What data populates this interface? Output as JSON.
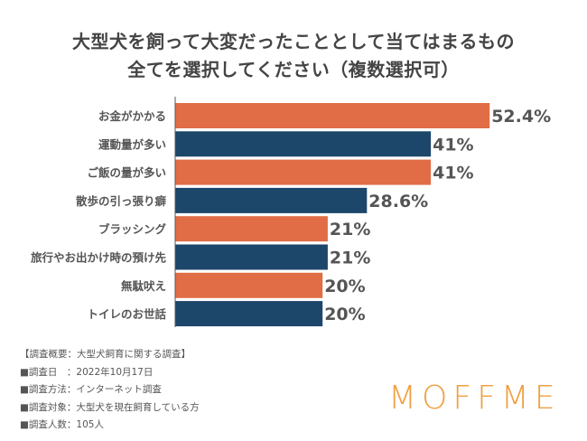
{
  "chart_data": {
    "type": "bar",
    "orientation": "horizontal",
    "title": [
      "大型犬を飼って大変だったこととして当てはまるもの",
      "全てを選択してください（複数選択可）"
    ],
    "categories": [
      "お金がかかる",
      "運動量が多い",
      "ご飯の量が多い",
      "散歩の引っ張り癖",
      "ブラッシング",
      "旅行やお出かけ時の預け先",
      "無駄吠え",
      "トイレのお世話"
    ],
    "values": [
      52.4,
      41,
      41,
      28.6,
      21,
      21,
      20,
      20
    ],
    "data_labels": [
      "52.4%",
      "41%",
      "41%",
      "28.6%",
      "21%",
      "21%",
      "20%",
      "20%"
    ],
    "bar_colors": [
      "#e06d45",
      "#1d466b",
      "#e06d45",
      "#1d466b",
      "#e06d45",
      "#1d466b",
      "#e06d45",
      "#1d466b"
    ],
    "unit": "%",
    "grid": false,
    "legend": "none"
  },
  "notes": [
    "【調査概要：大型犬飼育に関する調査】",
    "■調査日　：2022年10月17日",
    "■調査方法：インターネット調査",
    "■調査対象：大型犬を現在飼育している方",
    "■調査人数：105人"
  ],
  "logo": "MOFFME"
}
